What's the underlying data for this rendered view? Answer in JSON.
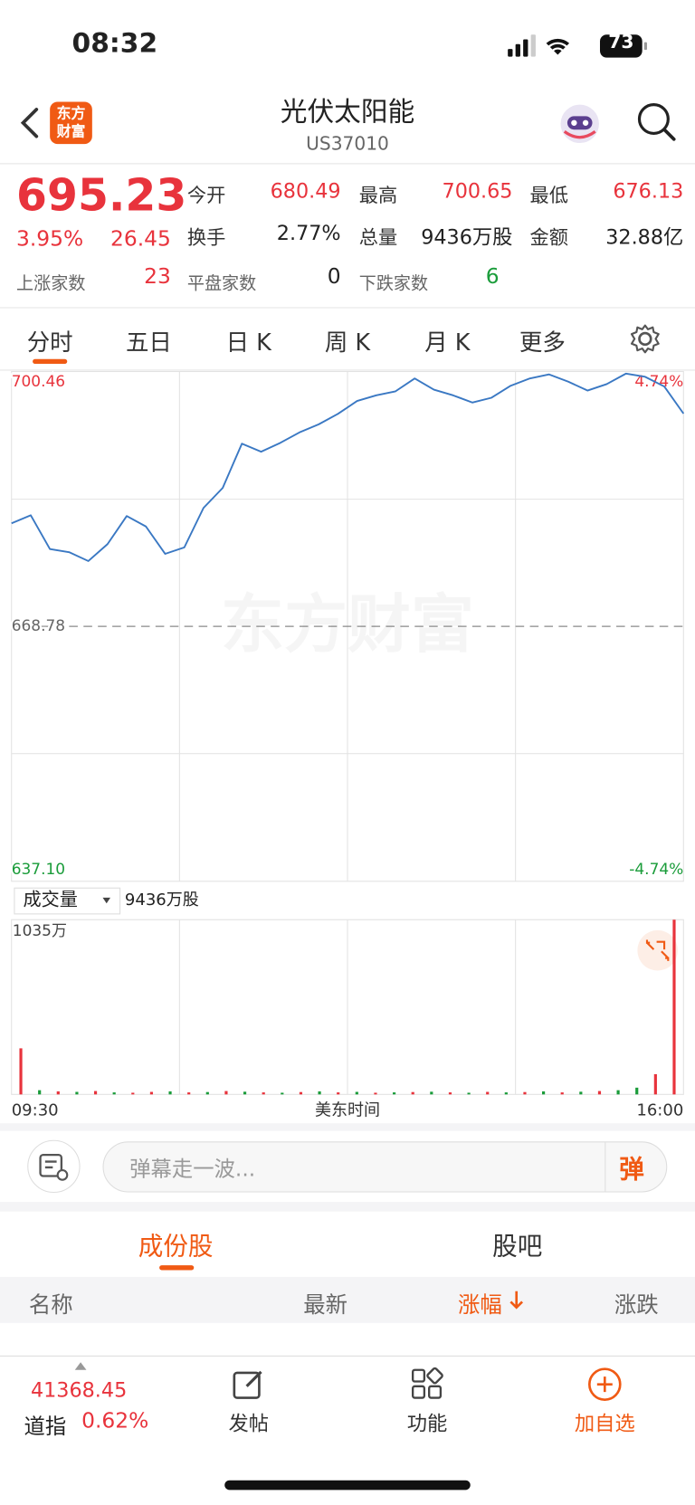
{
  "status_bar": {
    "time": "08:32",
    "battery": "73"
  },
  "header": {
    "logo": "东方财富",
    "title": "光伏太阳能",
    "code": "US37010"
  },
  "quote": {
    "price": "695.23",
    "change_pct": "3.95%",
    "change": "26.45",
    "stats": [
      {
        "label": "今开",
        "value": "680.49"
      },
      {
        "label": "最高",
        "value": "700.65"
      },
      {
        "label": "最低",
        "value": "676.13"
      },
      {
        "label": "换手",
        "value": "2.77%"
      },
      {
        "label": "总量",
        "value": "9436万股"
      },
      {
        "label": "金额",
        "value": "32.88亿"
      }
    ],
    "breadth": [
      {
        "label": "上涨家数",
        "value": "23"
      },
      {
        "label": "平盘家数",
        "value": "0"
      },
      {
        "label": "下跌家数",
        "value": "6"
      }
    ]
  },
  "tabs": [
    "分时",
    "五日",
    "日 K",
    "周 K",
    "月 K",
    "更多"
  ],
  "chart_data": [
    {
      "type": "line",
      "color": "#3a78c3",
      "reference": 668.78,
      "ylim": [
        637.1,
        700.46
      ],
      "yticks": [
        700.46,
        668.78,
        {
          "value": 637.1,
          "label": "637.10"
        }
      ],
      "y2lim": [
        -4.74,
        4.74
      ],
      "y2ticks": [
        {
          "value": 4.74,
          "label": "4.74%"
        },
        {
          "value": -4.74,
          "label": "-4.74%"
        }
      ],
      "x_labels": [
        "09:30",
        "16:00"
      ],
      "xlabel": "美东时间",
      "values": [
        681.6,
        682.6,
        678.4,
        678.0,
        676.9,
        679.0,
        682.5,
        681.2,
        677.8,
        678.6,
        683.5,
        686.0,
        691.5,
        690.5,
        691.6,
        692.9,
        693.9,
        695.2,
        696.8,
        697.5,
        698.0,
        699.6,
        698.2,
        697.5,
        696.6,
        697.2,
        698.7,
        699.6,
        700.1,
        699.2,
        698.1,
        698.9,
        700.2,
        699.8,
        698.6,
        695.23
      ]
    },
    {
      "type": "bar",
      "label": "成交量",
      "total": "9436万股",
      "ylim": [
        0,
        1035
      ],
      "yticks": [
        {
          "value": 1035,
          "label": "1035万"
        }
      ],
      "values": [
        273,
        25,
        18,
        15,
        20,
        12,
        10,
        15,
        18,
        12,
        14,
        20,
        16,
        12,
        10,
        14,
        18,
        12,
        15,
        10,
        12,
        14,
        16,
        12,
        10,
        15,
        12,
        14,
        18,
        12,
        16,
        20,
        25,
        40,
        120,
        1035
      ],
      "colors": [
        "#e8333c",
        "#1a9c3a",
        "#e8333c",
        "#1a9c3a",
        "#e8333c",
        "#1a9c3a",
        "#e8333c",
        "#e8333c",
        "#1a9c3a",
        "#e8333c",
        "#1a9c3a",
        "#e8333c",
        "#1a9c3a",
        "#e8333c",
        "#1a9c3a",
        "#e8333c",
        "#1a9c3a",
        "#e8333c",
        "#1a9c3a",
        "#e8333c",
        "#1a9c3a",
        "#e8333c",
        "#1a9c3a",
        "#e8333c",
        "#1a9c3a",
        "#e8333c",
        "#1a9c3a",
        "#e8333c",
        "#1a9c3a",
        "#e8333c",
        "#1a9c3a",
        "#e8333c",
        "#1a9c3a",
        "#1a9c3a",
        "#e8333c",
        "#e8333c"
      ]
    }
  ],
  "barrage": {
    "placeholder": "弹幕走一波...",
    "button": "弹"
  },
  "sub_tabs": [
    "成份股",
    "股吧"
  ],
  "table_header": [
    "名称",
    "最新",
    "涨幅",
    "涨跌"
  ],
  "footer": {
    "index_value": "41368.45",
    "index_name": "道指",
    "index_change": "0.62%",
    "nav": [
      "发帖",
      "功能",
      "加自选"
    ]
  }
}
